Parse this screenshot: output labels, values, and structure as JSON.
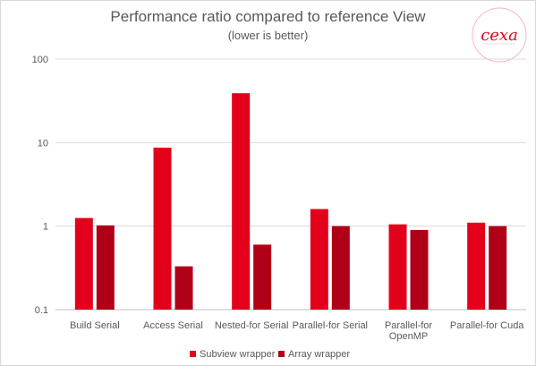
{
  "chart_data": {
    "type": "bar",
    "title": "Performance ratio compared to reference View",
    "subtitle": "(lower is better)",
    "y_scale": "log",
    "ylim": [
      0.1,
      100
    ],
    "y_ticks": [
      "0.1",
      "1",
      "10",
      "100"
    ],
    "grid": true,
    "legend_placement": "bottom",
    "categories": [
      [
        "Build Serial"
      ],
      [
        "Access Serial"
      ],
      [
        "Nested-for Serial"
      ],
      [
        "Parallel-for Serial"
      ],
      [
        "Parallel-for",
        "OpenMP"
      ],
      [
        "Parallel-for Cuda"
      ]
    ],
    "series": [
      {
        "name": "Subview wrapper",
        "color": "#e3001b",
        "values": [
          1.25,
          8.7,
          39,
          1.6,
          1.05,
          1.1
        ]
      },
      {
        "name": "Array wrapper",
        "color": "#b00018",
        "values": [
          1.02,
          0.33,
          0.6,
          1.0,
          0.9,
          1.0
        ]
      }
    ]
  },
  "logo": {
    "text": "cexa",
    "color": "#e3001b"
  }
}
